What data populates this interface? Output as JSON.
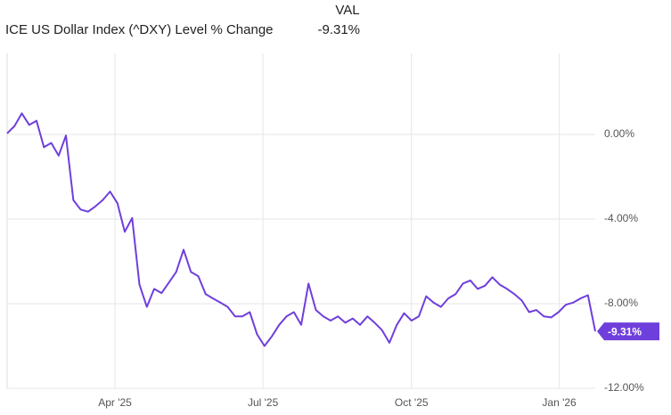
{
  "chart_data": {
    "type": "line",
    "legend_header": "VAL",
    "series": [
      {
        "name": "ICE US Dollar Index (^DXY) Level % Change",
        "color": "#6f3fdb",
        "value_label": "-9.31%",
        "values": [
          0.05,
          0.4,
          1.0,
          0.45,
          0.65,
          -0.6,
          -0.4,
          -1.0,
          -0.05,
          -3.1,
          -3.55,
          -3.65,
          -3.4,
          -3.1,
          -2.7,
          -3.25,
          -4.6,
          -3.95,
          -7.1,
          -8.15,
          -7.3,
          -7.5,
          -7.0,
          -6.5,
          -5.45,
          -6.5,
          -6.7,
          -7.55,
          -7.75,
          -7.95,
          -8.15,
          -8.6,
          -8.6,
          -8.4,
          -9.45,
          -10.0,
          -9.55,
          -9.0,
          -8.6,
          -8.4,
          -9.0,
          -7.05,
          -8.3,
          -8.6,
          -8.8,
          -8.6,
          -8.9,
          -8.7,
          -9.0,
          -8.6,
          -8.9,
          -9.25,
          -9.85,
          -9.0,
          -8.45,
          -8.8,
          -8.6,
          -7.65,
          -7.95,
          -8.15,
          -7.75,
          -7.55,
          -7.05,
          -6.9,
          -7.3,
          -7.15,
          -6.75,
          -7.1,
          -7.3,
          -7.55,
          -7.85,
          -8.4,
          -8.3,
          -8.6,
          -8.65,
          -8.4,
          -8.05,
          -7.95,
          -7.75,
          -7.6,
          -9.31
        ]
      }
    ],
    "xlim": [
      0,
      80
    ],
    "xticks": [
      {
        "value": 14.67,
        "label": "Apr '25"
      },
      {
        "value": 34.8,
        "label": "Jul '25"
      },
      {
        "value": 55.0,
        "label": "Oct '25"
      },
      {
        "value": 75.1,
        "label": "Jan '26"
      }
    ],
    "ylim": [
      -12,
      4
    ],
    "yticks": [
      {
        "value": 0,
        "label": "0.00%"
      },
      {
        "value": -4,
        "label": "-4.00%"
      },
      {
        "value": -8,
        "label": "-8.00%"
      },
      {
        "value": -12,
        "label": "-12.00%"
      }
    ],
    "grid": true
  }
}
